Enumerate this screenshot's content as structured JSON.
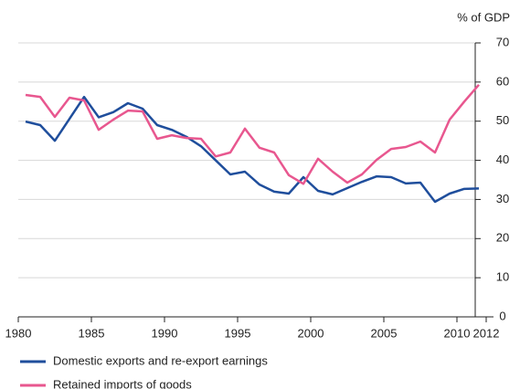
{
  "chart_data": {
    "type": "line",
    "y_axis_label": "% of GDP",
    "x": [
      1980.5,
      1981.5,
      1982.5,
      1983.5,
      1984.5,
      1985.5,
      1986.5,
      1987.5,
      1988.5,
      1989.5,
      1990.5,
      1991.5,
      1992.5,
      1993.5,
      1994.5,
      1995.5,
      1996.5,
      1997.5,
      1998.5,
      1999.5,
      2000.5,
      2001.5,
      2002.5,
      2003.5,
      2004.5,
      2005.5,
      2006.5,
      2007.5,
      2008.5,
      2009.5,
      2010.5,
      2011.5
    ],
    "series": [
      {
        "name": "Domestic exports and re-export earnings",
        "color": "#1f4e9c",
        "values": [
          49.9,
          49,
          45,
          50.6,
          56.2,
          51,
          52.3,
          54.6,
          53.2,
          49,
          47.8,
          46,
          43.6,
          40,
          36.4,
          37.1,
          33.8,
          32,
          31.5,
          35.7,
          32.2,
          31.3,
          32.9,
          34.5,
          35.9,
          35.7,
          34.1,
          34.3,
          29.4,
          31.5,
          32.7,
          32.8
        ]
      },
      {
        "name": "Retained imports of goods",
        "color": "#e8578f",
        "values": [
          56.7,
          56.2,
          51.1,
          56,
          55.3,
          47.8,
          50.4,
          52.7,
          52.5,
          45.5,
          46.4,
          45.7,
          45.5,
          41,
          42,
          48.1,
          43.2,
          42,
          36.2,
          34,
          40.4,
          37.1,
          34.3,
          36.4,
          40.1,
          42.9,
          43.4,
          44.8,
          42,
          50.4,
          55,
          59.3
        ]
      }
    ],
    "xlim": [
      1980,
      2012
    ],
    "xticks": [
      1980,
      1985,
      1990,
      1995,
      2000,
      2005,
      2010,
      2012
    ],
    "ylim": [
      0,
      70
    ],
    "yticks": [
      0,
      10,
      20,
      30,
      40,
      50,
      60,
      70
    ],
    "grid": true
  }
}
